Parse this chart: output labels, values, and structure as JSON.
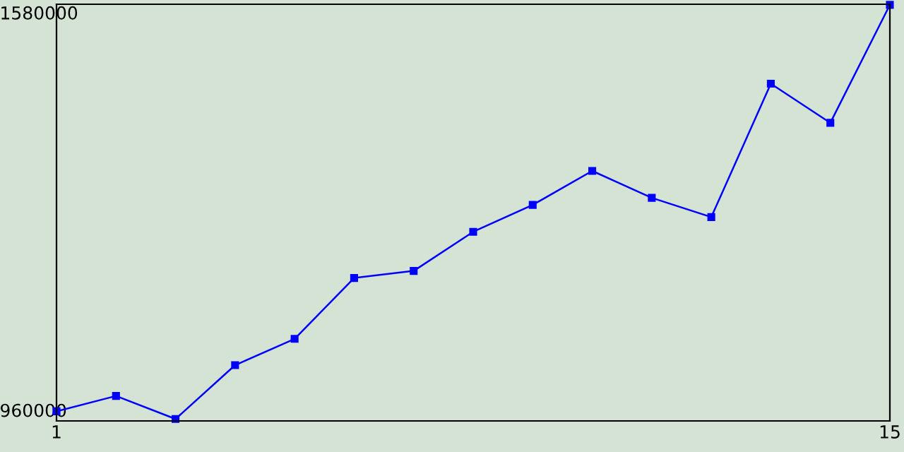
{
  "chart_data": {
    "type": "line",
    "categories": [
      "1",
      null,
      null,
      null,
      null,
      null,
      null,
      null,
      null,
      null,
      null,
      null,
      null,
      null,
      "15"
    ],
    "series": [
      {
        "color": "#0000ff",
        "values": [
          961000,
          985000,
          949000,
          1033000,
          1074000,
          1169000,
          1180000,
          1241000,
          1283000,
          1336000,
          1294000,
          1264000,
          1472000,
          1411000,
          1595000
        ]
      }
    ],
    "ylim": [
      946000,
      1596000
    ],
    "yticks": [
      960000,
      1580000
    ],
    "grid": false,
    "marker": "square",
    "line_style": "solid"
  }
}
